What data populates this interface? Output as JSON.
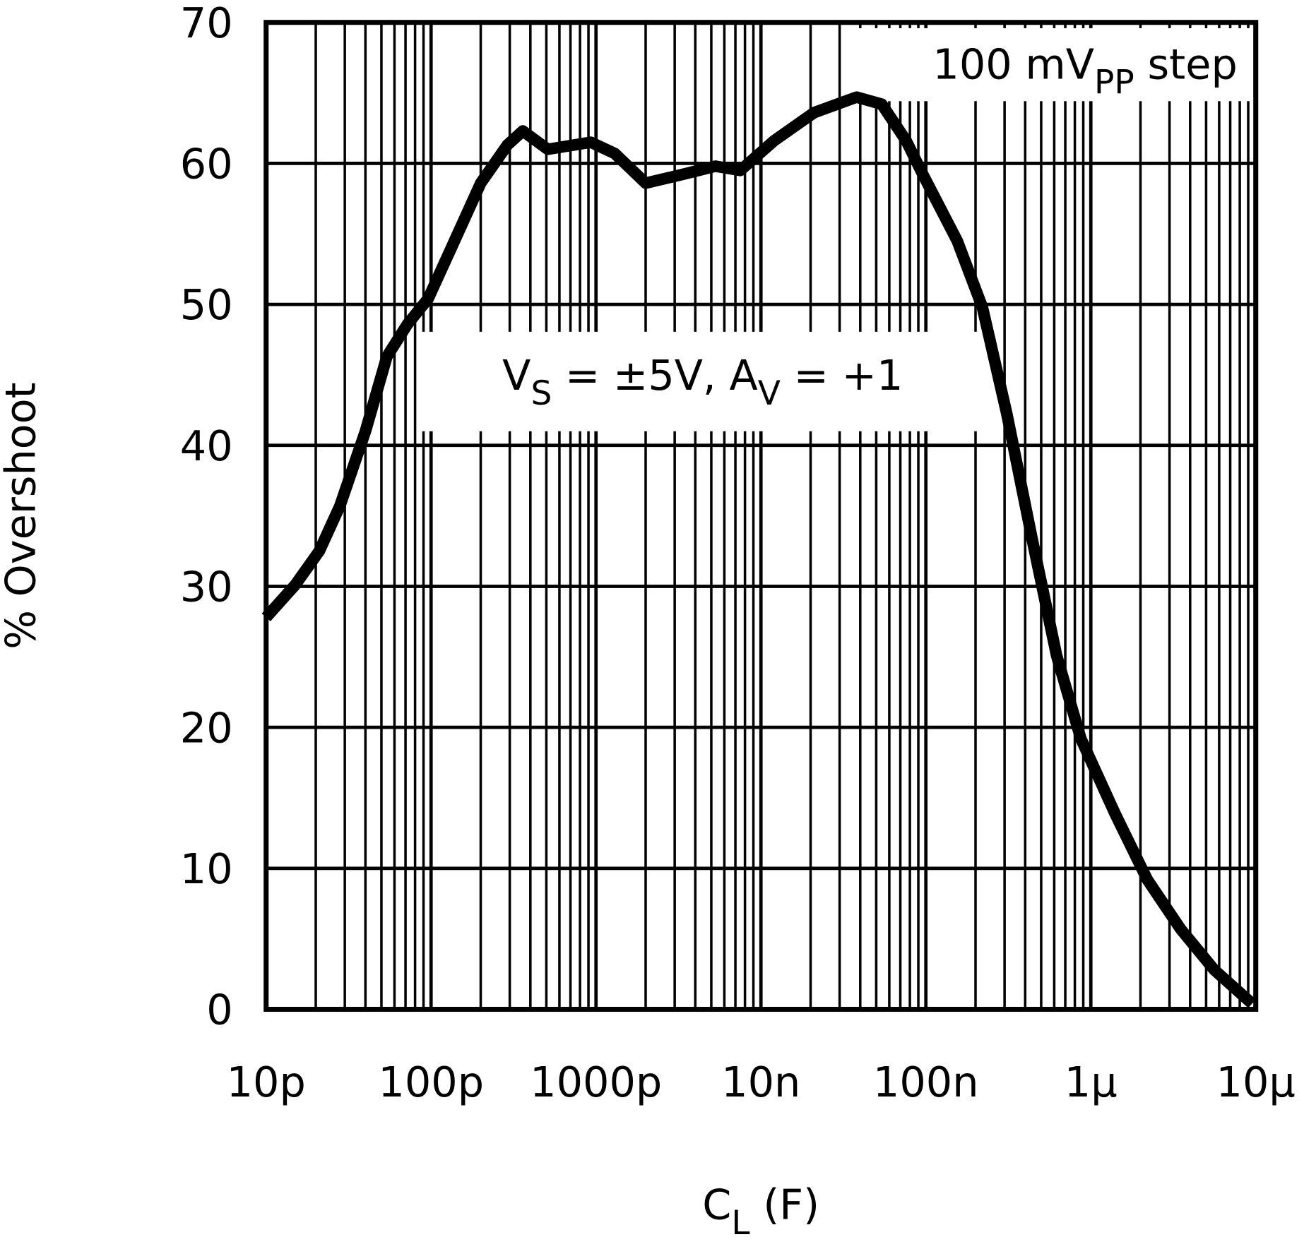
{
  "chart_data": {
    "type": "line",
    "x_label": {
      "parts": [
        {
          "text": "C"
        },
        {
          "text": "L",
          "sub": true
        },
        {
          "text": " (F)"
        }
      ]
    },
    "y_label": "% Overshoot",
    "log_x": true,
    "grid": true,
    "minor_grid": true,
    "xlim": [
      1e-11,
      1e-05
    ],
    "xticks": [
      {
        "value": 1e-11,
        "label": "10p"
      },
      {
        "value": 1e-10,
        "label": "100p"
      },
      {
        "value": 1e-09,
        "label": "1000p"
      },
      {
        "value": 1e-08,
        "label": "10n"
      },
      {
        "value": 1e-07,
        "label": "100n"
      },
      {
        "value": 1e-06,
        "label": "1µ"
      },
      {
        "value": 1e-05,
        "label": "10µ"
      }
    ],
    "ylim": [
      0,
      70
    ],
    "yticks": [
      0,
      10,
      20,
      30,
      40,
      50,
      60,
      70
    ],
    "annotations": [
      {
        "parts": [
          {
            "text": "100 mV"
          },
          {
            "text": "PP",
            "sub": true
          },
          {
            "text": " step"
          }
        ]
      },
      {
        "parts": [
          {
            "text": "V"
          },
          {
            "text": "S",
            "sub": true
          },
          {
            "text": " = ±5V, A"
          },
          {
            "text": "V",
            "sub": true
          },
          {
            "text": " = +1"
          }
        ]
      }
    ],
    "series": [
      {
        "color": "#000000",
        "x": [
          1e-11,
          1.5e-11,
          2.1e-11,
          2.8e-11,
          4e-11,
          5.4e-11,
          7.2e-11,
          9.6e-11,
          1.35e-10,
          2e-10,
          2.9e-10,
          3.6e-10,
          5.1e-10,
          9.3e-10,
          1.3e-09,
          2e-09,
          3.3e-09,
          5.3e-09,
          7.5e-09,
          1.2e-08,
          2.1e-08,
          3.8e-08,
          5.4e-08,
          7.6e-08,
          9.6e-08,
          1.55e-07,
          2.2e-07,
          3.1e-07,
          4.4e-07,
          6.2e-07,
          8.7e-07,
          1.4e-06,
          2.2e-06,
          3.5e-06,
          5.6e-06,
          9.5e-06
        ],
        "values": [
          27.8,
          30.1,
          32.5,
          35.7,
          41,
          46.3,
          48.6,
          50.4,
          54.2,
          58.6,
          61.3,
          62.3,
          61.0,
          61.5,
          60.7,
          58.6,
          59.2,
          59.8,
          59.5,
          61.6,
          63.6,
          64.7,
          64.2,
          61.6,
          59.2,
          54.5,
          49.8,
          42.2,
          33.4,
          25.1,
          19.2,
          13.9,
          9.2,
          5.7,
          2.8,
          0.4
        ]
      }
    ]
  }
}
